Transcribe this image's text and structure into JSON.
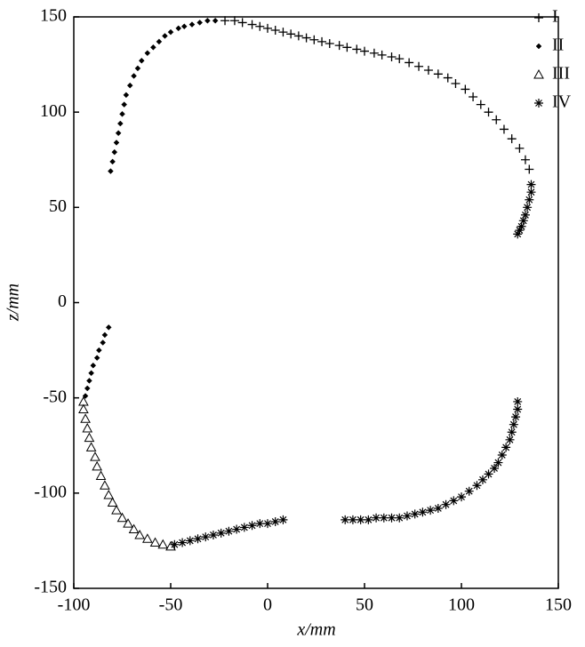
{
  "chart_data": {
    "type": "scatter",
    "xlabel": "x/mm",
    "ylabel": "z/mm",
    "xlim": [
      -100,
      150
    ],
    "xticks": [
      -100,
      -50,
      0,
      50,
      100,
      150
    ],
    "ylim": [
      -150,
      150
    ],
    "yticks": [
      -150,
      -100,
      -50,
      0,
      50,
      100,
      150
    ],
    "legend": "upper right",
    "series": [
      {
        "name": "I",
        "marker": "plus",
        "color": "#000000",
        "x": [
          -22,
          -17,
          -13,
          -8,
          -4,
          0,
          4,
          8,
          12,
          16,
          20,
          24,
          28,
          32,
          37,
          41,
          46,
          50,
          55,
          59,
          64,
          68,
          73,
          78,
          83,
          88,
          93,
          97,
          102,
          106,
          110,
          114,
          118,
          122,
          126,
          130,
          133,
          135
        ],
        "y": [
          148,
          148,
          147,
          146,
          145,
          144,
          143,
          142,
          141,
          140,
          139,
          138,
          137,
          136,
          135,
          134,
          133,
          132,
          131,
          130,
          129,
          128,
          126,
          124,
          122,
          120,
          118,
          115,
          112,
          108,
          104,
          100,
          96,
          91,
          86,
          81,
          75,
          70
        ]
      },
      {
        "name": "II",
        "marker": "diamond",
        "color": "#000000",
        "x": [
          -81,
          -80,
          -79,
          -78,
          -77,
          -76,
          -75,
          -74,
          -73,
          -71,
          -69,
          -67,
          -65,
          -62,
          -59,
          -56,
          -53,
          -50,
          -46,
          -43,
          -39,
          -35,
          -31,
          -27,
          -82,
          -84,
          -85,
          -87,
          -88,
          -90,
          -91,
          -92,
          -93,
          -94
        ],
        "y": [
          69,
          74,
          79,
          84,
          89,
          94,
          99,
          104,
          109,
          114,
          119,
          123,
          127,
          131,
          134,
          137,
          140,
          142,
          144,
          145,
          146,
          147,
          148,
          148,
          -13,
          -17,
          -21,
          -25,
          -29,
          -33,
          -37,
          -41,
          -45,
          -49
        ]
      },
      {
        "name": "III",
        "marker": "triangle",
        "color": "#000000",
        "x": [
          -95,
          -95,
          -94,
          -93,
          -92,
          -91,
          -89,
          -88,
          -86,
          -84,
          -82,
          -80,
          -78,
          -75,
          -72,
          -69,
          -66,
          -62,
          -58,
          -54,
          -50
        ],
        "y": [
          -52,
          -56,
          -61,
          -66,
          -71,
          -76,
          -81,
          -86,
          -91,
          -96,
          -101,
          -105,
          -109,
          -113,
          -116,
          -119,
          -122,
          -124,
          -126,
          -127,
          -128
        ]
      },
      {
        "name": "IV",
        "marker": "asterisk",
        "color": "#000000",
        "x": [
          136,
          136,
          135,
          134,
          133,
          132,
          131,
          130,
          129,
          129,
          129,
          128,
          127,
          126,
          125,
          123,
          121,
          119,
          117,
          114,
          111,
          108,
          104,
          100,
          96,
          92,
          88,
          84,
          80,
          76,
          72,
          68,
          64,
          60,
          56,
          52,
          48,
          44,
          40,
          -48,
          -44,
          -40,
          -36,
          -32,
          -28,
          -24,
          -20,
          -16,
          -12,
          -8,
          -4,
          0,
          4,
          8
        ],
        "y": [
          62,
          58,
          54,
          50,
          46,
          43,
          40,
          38,
          36,
          -52,
          -56,
          -60,
          -64,
          -68,
          -72,
          -76,
          -80,
          -84,
          -87,
          -90,
          -93,
          -96,
          -99,
          -102,
          -104,
          -106,
          -108,
          -109,
          -110,
          -111,
          -112,
          -113,
          -113,
          -113,
          -113,
          -114,
          -114,
          -114,
          -114,
          -127,
          -126,
          -125,
          -124,
          -123,
          -122,
          -121,
          -120,
          -119,
          -118,
          -117,
          -116,
          -116,
          -115,
          -114
        ]
      }
    ]
  }
}
